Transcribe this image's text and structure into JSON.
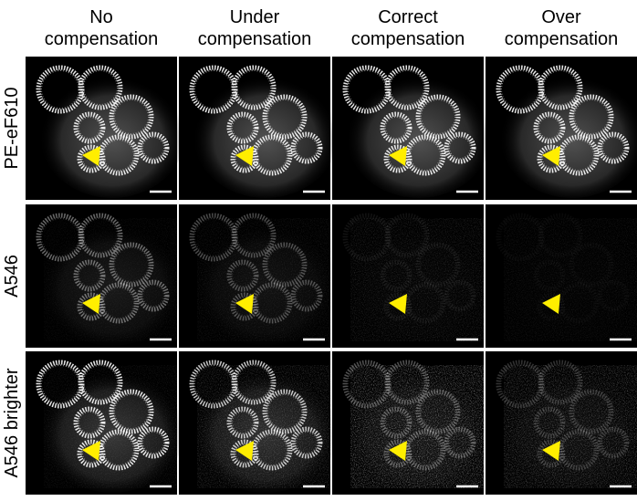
{
  "columns": [
    [
      "No",
      "compensation"
    ],
    [
      "Under",
      "compensation"
    ],
    [
      "Correct",
      "compensation"
    ],
    [
      "Over",
      "compensation"
    ]
  ],
  "rows": [
    "PE-eF610",
    "A546",
    "A546 brighter"
  ]
}
